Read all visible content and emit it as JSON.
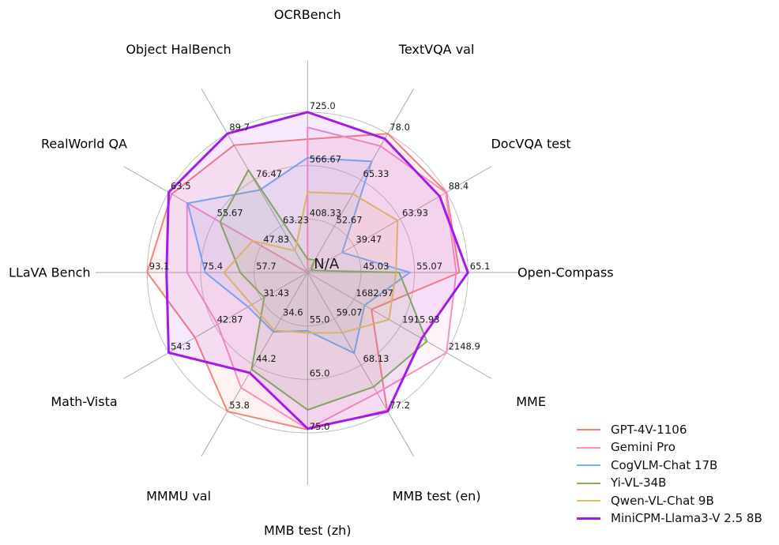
{
  "chart_data": {
    "type": "radar",
    "title": "",
    "categories": [
      "OCRBench",
      "TextVQA val",
      "DocVQA test",
      "Open-Compass",
      "MME",
      "MMB test (en)",
      "MMB test (zh)",
      "MMMU val",
      "Math-Vista",
      "LLaVA Bench",
      "RealWorld QA",
      "Object HalBench"
    ],
    "axes": [
      {
        "label": "OCRBench",
        "min": 250,
        "max": 725,
        "ticks": [
          "408.33",
          "566.67",
          "725.0"
        ]
      },
      {
        "label": "TextVQA val",
        "min": 40,
        "max": 78,
        "ticks": [
          "52.67",
          "65.33",
          "78.0"
        ]
      },
      {
        "label": "DocVQA test",
        "min": 15,
        "max": 88.4,
        "ticks": [
          "39.47",
          "63.93",
          "88.4"
        ]
      },
      {
        "label": "Open-Compass",
        "min": 35,
        "max": 65.1,
        "ticks": [
          "45.03",
          "55.07",
          "65.1"
        ]
      },
      {
        "label": "MME",
        "min": 1450,
        "max": 2148.9,
        "ticks": [
          "1682.97",
          "1915.93",
          "2148.9"
        ]
      },
      {
        "label": "MMB test (en)",
        "min": 50,
        "max": 77.2,
        "ticks": [
          "59.07",
          "68.13",
          "77.2"
        ]
      },
      {
        "label": "MMB test (zh)",
        "min": 45,
        "max": 75,
        "ticks": [
          "55.0",
          "65.0",
          "75.0"
        ]
      },
      {
        "label": "MMMU val",
        "min": 25,
        "max": 53.8,
        "ticks": [
          "34.6",
          "44.2",
          "53.8"
        ]
      },
      {
        "label": "Math-Vista",
        "min": 20,
        "max": 54.3,
        "ticks": [
          "31.43",
          "42.87",
          "54.3"
        ]
      },
      {
        "label": "LLaVA Bench",
        "min": 40,
        "max": 93.1,
        "ticks": [
          "57.7",
          "75.4",
          "93.1"
        ]
      },
      {
        "label": "RealWorld QA",
        "min": 40,
        "max": 63.5,
        "ticks": [
          "47.83",
          "55.67",
          "63.5"
        ]
      },
      {
        "label": "Object HalBench",
        "min": 50,
        "max": 89.7,
        "ticks": [
          "63.23",
          "76.47",
          "89.7"
        ]
      }
    ],
    "center_label": "N/A",
    "series": [
      {
        "name": "GPT-4V-1106",
        "color": "#f4827b",
        "line_width": 2,
        "values": [
          645,
          78.0,
          88.4,
          63.5,
          1771.5,
          77.0,
          74.4,
          53.8,
          47.8,
          93.1,
          63.0,
          86.4
        ]
      },
      {
        "name": "Gemini Pro",
        "color": "#f78fc1",
        "line_width": 2,
        "values": [
          680,
          74.6,
          88.1,
          62.9,
          2148.9,
          73.6,
          74.3,
          48.9,
          42.2,
          79.9,
          60.4,
          null
        ]
      },
      {
        "name": "CogVLM-Chat 17B",
        "color": "#74b0ee",
        "line_width": 2,
        "values": [
          590,
          70.4,
          33.3,
          54.2,
          1736.6,
          65.8,
          55.9,
          37.3,
          34.7,
          73.9,
          60.3,
          73.6
        ]
      },
      {
        "name": "Yi-VL-34B",
        "color": "#7fb256",
        "line_width": 2,
        "values": [
          290,
          43.4,
          16.9,
          52.2,
          2050.2,
          72.4,
          70.7,
          45.1,
          30.7,
          62.3,
          54.8,
          79.3
        ]
      },
      {
        "name": "Qwen-VL-Chat 9B",
        "color": "#e3c05f",
        "line_width": 2,
        "values": [
          488,
          61.5,
          62.6,
          51.6,
          1860.0,
          61.8,
          56.3,
          37.0,
          33.8,
          67.7,
          49.3,
          56.2
        ]
      },
      {
        "name": "MiniCPM-Llama3-V 2.5 8B",
        "color": "#a31ae9",
        "line_width": 3,
        "values": [
          725,
          76.6,
          84.8,
          65.1,
          2024.6,
          77.2,
          74.2,
          45.8,
          54.3,
          86.7,
          63.5,
          89.7
        ]
      }
    ],
    "style": {
      "fill_alpha": "0.1",
      "grid_ring_color": "#bfbfbf",
      "spoke_color": "#a8a8a8",
      "tick_color": "#1a1a1a",
      "label_color": "#000000",
      "background": "#ffffff"
    },
    "legend_position": "lower right",
    "grid": true,
    "num_rings": 3
  }
}
